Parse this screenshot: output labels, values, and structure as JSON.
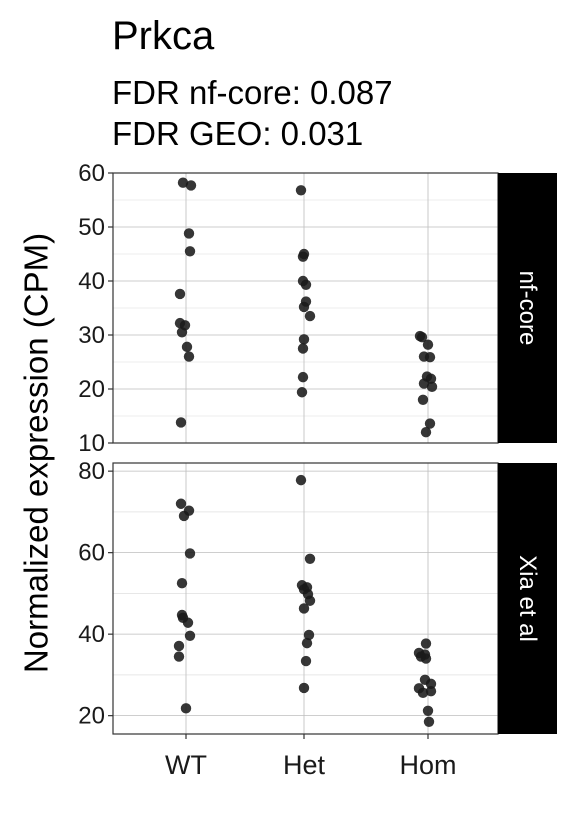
{
  "chart_data": {
    "type": "scatter",
    "title": "Prkca",
    "subtitle_lines": [
      "FDR nf-core: 0.087",
      "FDR GEO: 0.031"
    ],
    "ylabel": "Normalized expression (CPM)",
    "xlabel": "",
    "categories": [
      "WT",
      "Het",
      "Hom"
    ],
    "grid": true,
    "point_color": "#1a1a1a",
    "panels": [
      {
        "strip_label": "nf-core",
        "ylim": [
          10,
          60
        ],
        "yticks": [
          10,
          20,
          30,
          40,
          50,
          60
        ],
        "points": [
          {
            "group": "WT",
            "values": [
              58.2,
              57.7,
              48.8,
              45.5,
              37.6,
              32.2,
              31.8,
              30.5,
              27.8,
              26.0,
              13.8
            ]
          },
          {
            "group": "Het",
            "values": [
              56.8,
              45.0,
              44.5,
              40.0,
              39.3,
              36.2,
              35.2,
              33.5,
              29.2,
              27.5,
              22.2,
              19.4
            ]
          },
          {
            "group": "Hom",
            "values": [
              29.8,
              29.6,
              28.2,
              26.0,
              25.9,
              22.3,
              21.9,
              21.0,
              20.4,
              18.0,
              13.6,
              12.0
            ]
          }
        ]
      },
      {
        "strip_label": "Xia et al",
        "ylim": [
          15.5,
          82
        ],
        "yticks": [
          20,
          40,
          60,
          80
        ],
        "points": [
          {
            "group": "WT",
            "values": [
              72.0,
              70.3,
              69.0,
              59.8,
              52.5,
              44.7,
              44.0,
              42.8,
              39.6,
              37.1,
              34.5,
              21.8
            ]
          },
          {
            "group": "Het",
            "values": [
              77.8,
              58.5,
              52.0,
              51.5,
              51.0,
              49.8,
              48.2,
              46.3,
              39.8,
              37.8,
              33.4,
              26.8
            ]
          },
          {
            "group": "Hom",
            "values": [
              37.7,
              35.4,
              35.0,
              34.5,
              34.0,
              28.8,
              27.8,
              26.7,
              26.0,
              25.6,
              21.2,
              18.5
            ]
          }
        ]
      }
    ]
  }
}
